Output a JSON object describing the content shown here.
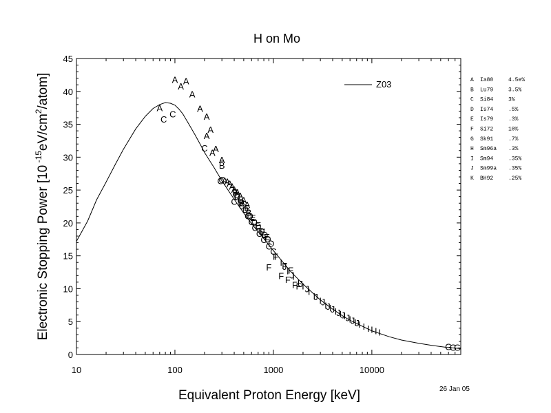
{
  "chart_data": {
    "type": "scatter",
    "title": "H on Mo",
    "xlabel": "Equivalent Proton Energy [keV]",
    "ylabel_parts": {
      "prefix": "Electronic Stopping Power [10",
      "exp1": " -15",
      "mid": "eV/cm",
      "exp2": "2",
      "suffix": "/atom]"
    },
    "date": "26 Jan 05",
    "xscale": "log",
    "xlim": [
      10,
      80000
    ],
    "ylim": [
      0,
      45
    ],
    "x_ticks": [
      10,
      100,
      1000,
      10000
    ],
    "x_tick_labels": [
      "10",
      "100",
      "1000",
      "10000"
    ],
    "y_ticks": [
      0,
      5,
      10,
      15,
      20,
      25,
      30,
      35,
      40,
      45
    ],
    "y_tick_labels": [
      "0",
      "5",
      "10",
      "15",
      "20",
      "25",
      "30",
      "35",
      "40",
      "45"
    ],
    "grid": false,
    "curve": {
      "name": "Z03",
      "x": [
        10,
        13,
        16,
        20,
        25,
        30,
        40,
        50,
        60,
        70,
        80,
        90,
        100,
        110,
        120,
        140,
        160,
        180,
        200,
        250,
        300,
        400,
        500,
        600,
        800,
        1000,
        1500,
        2000,
        3000,
        4000,
        5000,
        6000,
        8000,
        10000,
        15000,
        20000,
        30000,
        40000,
        50000,
        60000,
        80000
      ],
      "y": [
        17.2,
        20.3,
        23.5,
        26.2,
        29.0,
        31.2,
        34.3,
        36.2,
        37.4,
        38.0,
        38.3,
        38.2,
        37.9,
        37.3,
        36.6,
        34.9,
        33.4,
        32.0,
        30.7,
        28.4,
        26.4,
        23.6,
        21.5,
        19.9,
        17.6,
        15.8,
        12.6,
        10.7,
        8.3,
        6.9,
        5.9,
        5.2,
        4.3,
        3.6,
        2.7,
        2.2,
        1.7,
        1.4,
        1.2,
        1.05,
        0.9
      ]
    },
    "legend_entries": [
      {
        "key": "A",
        "ref": "Ia80",
        "err": "4.5e%"
      },
      {
        "key": "B",
        "ref": "Lu79",
        "err": "3.5%"
      },
      {
        "key": "C",
        "ref": "Si84",
        "err": "3%"
      },
      {
        "key": "D",
        "ref": "Is74",
        "err": ".5%"
      },
      {
        "key": "E",
        "ref": "Is79",
        "err": ".3%"
      },
      {
        "key": "F",
        "ref": "Si72",
        "err": "10%"
      },
      {
        "key": "G",
        "ref": "Sk91",
        "err": ".7%"
      },
      {
        "key": "H",
        "ref": "Sm96a",
        "err": ".3%"
      },
      {
        "key": "I",
        "ref": "Sm94",
        "err": ".35%"
      },
      {
        "key": "J",
        "ref": "Sm99a",
        "err": ".35%"
      },
      {
        "key": "K",
        "ref": "BH92",
        "err": ".25%"
      }
    ],
    "series": [
      {
        "marker": "A",
        "x": [
          70,
          100,
          115,
          130,
          150,
          180,
          210,
          230,
          260,
          300
        ],
        "y": [
          37.5,
          41.8,
          40.8,
          41.6,
          39.6,
          37.4,
          36.2,
          34.2,
          31.3,
          29.6
        ]
      },
      {
        "marker": "A",
        "x": [
          210,
          240,
          320,
          340,
          360,
          380,
          400,
          430,
          460,
          500,
          540
        ],
        "y": [
          33.3,
          30.7,
          26.5,
          26.3,
          26.0,
          25.6,
          25.1,
          24.7,
          24.2,
          23.5,
          22.8
        ]
      },
      {
        "marker": "B",
        "x": [
          300,
          410,
          480,
          560
        ],
        "y": [
          28.8,
          24.7,
          23.1,
          21.6
        ]
      },
      {
        "marker": "C",
        "x": [
          77,
          95,
          200,
          290,
          300,
          400,
          420,
          480,
          550,
          600,
          650,
          720,
          800,
          900,
          1000
        ],
        "y": [
          35.8,
          36.6,
          31.4,
          26.4,
          26.6,
          23.3,
          24.3,
          22.6,
          21.1,
          20.2,
          19.3,
          18.4,
          17.5,
          16.5,
          15.7
        ]
      },
      {
        "marker": "D",
        "x": [
          430,
          470,
          520,
          580,
          640,
          700,
          760,
          820,
          880,
          950
        ],
        "y": [
          24.0,
          23.2,
          22.1,
          21.1,
          20.2,
          19.5,
          18.8,
          18.2,
          17.6,
          16.9
        ]
      },
      {
        "marker": "E",
        "x": [
          460,
          540,
          620,
          700,
          780,
          860
        ],
        "y": [
          23.6,
          22.3,
          20.8,
          19.7,
          18.7,
          17.9
        ]
      },
      {
        "marker": "F",
        "x": [
          900,
          1050,
          1200,
          1300,
          1400,
          1500,
          1650,
          1800
        ],
        "y": [
          13.3,
          14.9,
          12.0,
          13.5,
          11.4,
          12.8,
          10.6,
          10.4
        ]
      },
      {
        "marker": "G",
        "x": [
          60000,
          67000,
          74000
        ],
        "y": [
          1.2,
          1.1,
          1.1
        ]
      },
      {
        "marker": "I",
        "x": [
          1050,
          1200,
          1400,
          1600,
          1800,
          2000,
          2300,
          2600,
          3000,
          3400,
          3800,
          4300,
          4800,
          5300,
          6000,
          6800,
          7500,
          8300,
          9200,
          10000,
          11000,
          12000
        ],
        "y": [
          14.9,
          14.0,
          12.7,
          11.9,
          11.0,
          10.4,
          9.6,
          8.9,
          8.2,
          7.5,
          7.1,
          6.6,
          6.2,
          5.9,
          5.4,
          4.9,
          4.6,
          4.3,
          4.0,
          3.8,
          3.6,
          3.4
        ]
      },
      {
        "marker": "J",
        "x": [
          1300,
          1550,
          1900,
          2200,
          2700,
          3200,
          3600,
          4000,
          4600,
          5100,
          5700,
          6400,
          7100
        ],
        "y": [
          13.4,
          12.1,
          10.8,
          10.0,
          8.8,
          8.0,
          7.3,
          6.9,
          6.4,
          6.0,
          5.6,
          5.2,
          4.8
        ]
      }
    ]
  }
}
